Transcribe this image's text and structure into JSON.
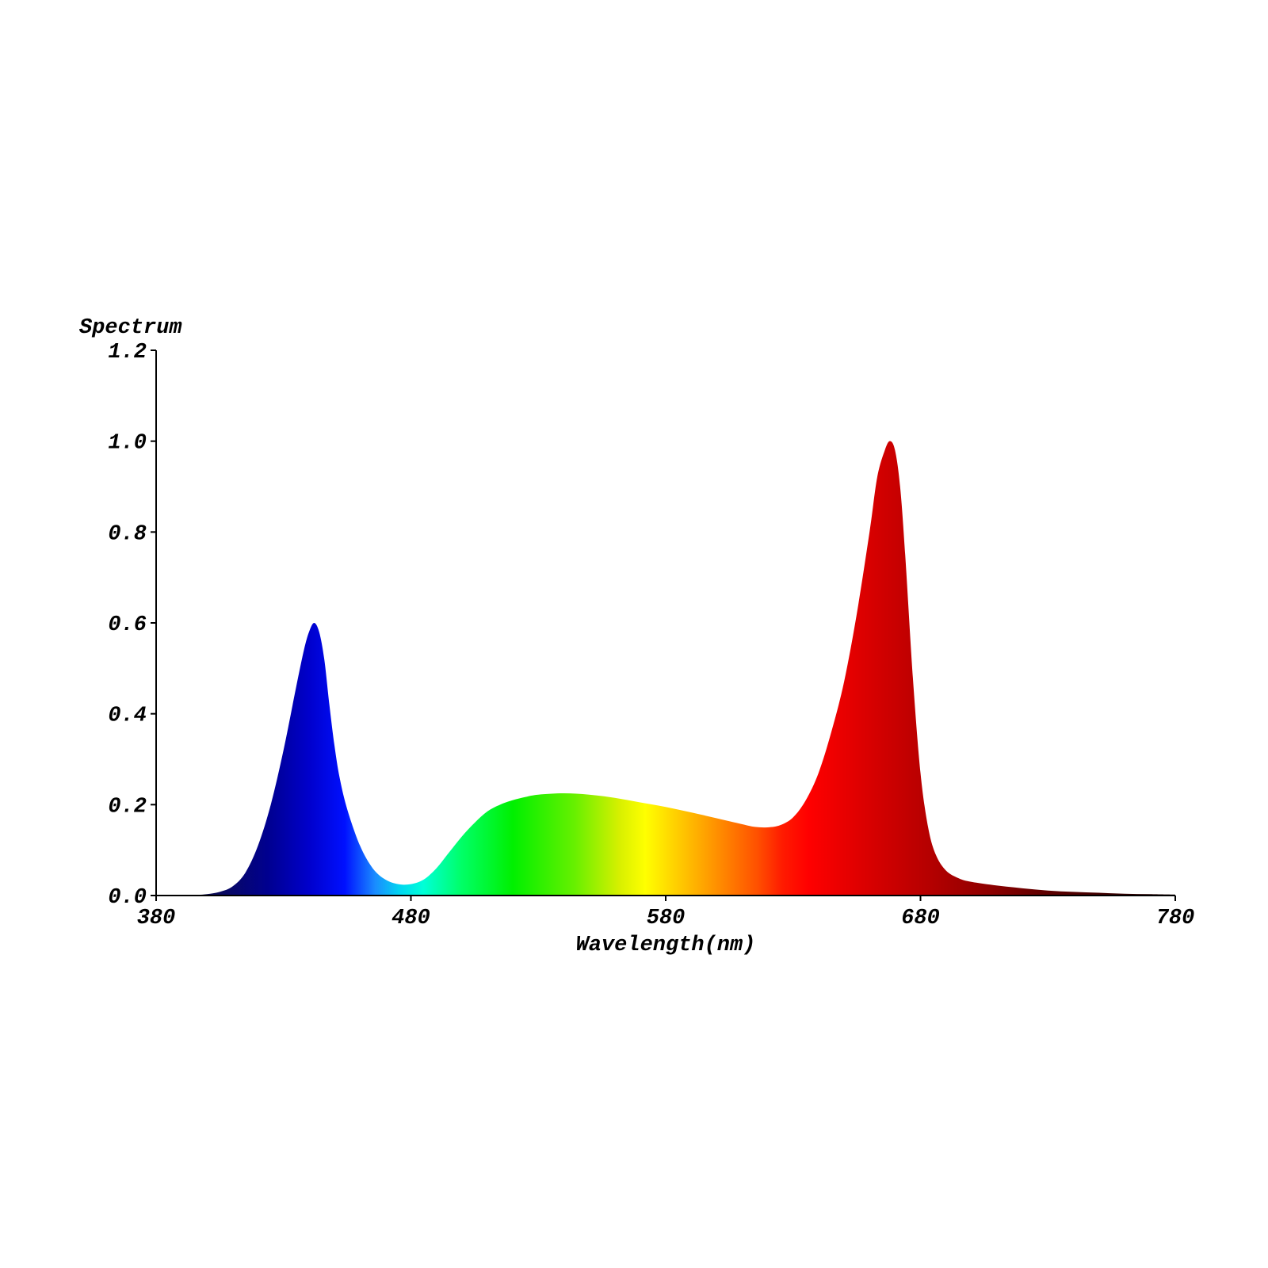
{
  "chart_data": {
    "type": "area",
    "ylabel": "Spectrum",
    "xlabel": "Wavelength(nm)",
    "xlim": [
      380,
      780
    ],
    "ylim": [
      0,
      1.2
    ],
    "xticks": [
      "380",
      "480",
      "580",
      "680",
      "780"
    ],
    "yticks": [
      "0.0",
      "0.2",
      "0.4",
      "0.6",
      "0.8",
      "1.0",
      "1.2"
    ],
    "grid": false,
    "fill": "visible spectrum gradient",
    "series": [
      {
        "x": [
          380,
          390,
          395,
          400,
          405,
          410,
          415,
          420,
          425,
          430,
          435,
          438,
          440,
          442,
          444,
          446,
          448,
          450,
          452,
          455,
          460,
          465,
          470,
          475,
          480,
          485,
          490,
          495,
          500,
          505,
          510,
          515,
          520,
          525,
          530,
          540,
          550,
          560,
          570,
          580,
          590,
          600,
          610,
          615,
          620,
          625,
          630,
          635,
          640,
          645,
          650,
          655,
          660,
          663,
          666,
          668,
          670,
          672,
          674,
          677,
          680,
          683,
          686,
          690,
          695,
          700,
          710,
          720,
          730,
          740,
          750,
          760,
          770,
          780
        ],
        "y": [
          0.0,
          0.0,
          0.001,
          0.003,
          0.008,
          0.02,
          0.05,
          0.11,
          0.2,
          0.32,
          0.46,
          0.54,
          0.58,
          0.6,
          0.58,
          0.52,
          0.42,
          0.33,
          0.26,
          0.19,
          0.11,
          0.06,
          0.035,
          0.025,
          0.025,
          0.035,
          0.06,
          0.095,
          0.13,
          0.16,
          0.185,
          0.2,
          0.21,
          0.217,
          0.222,
          0.225,
          0.222,
          0.215,
          0.205,
          0.195,
          0.183,
          0.17,
          0.157,
          0.151,
          0.15,
          0.155,
          0.172,
          0.21,
          0.27,
          0.36,
          0.47,
          0.62,
          0.8,
          0.92,
          0.98,
          1.0,
          0.98,
          0.9,
          0.75,
          0.48,
          0.27,
          0.15,
          0.09,
          0.055,
          0.038,
          0.03,
          0.022,
          0.016,
          0.011,
          0.008,
          0.006,
          0.004,
          0.003,
          0.002
        ]
      }
    ]
  }
}
